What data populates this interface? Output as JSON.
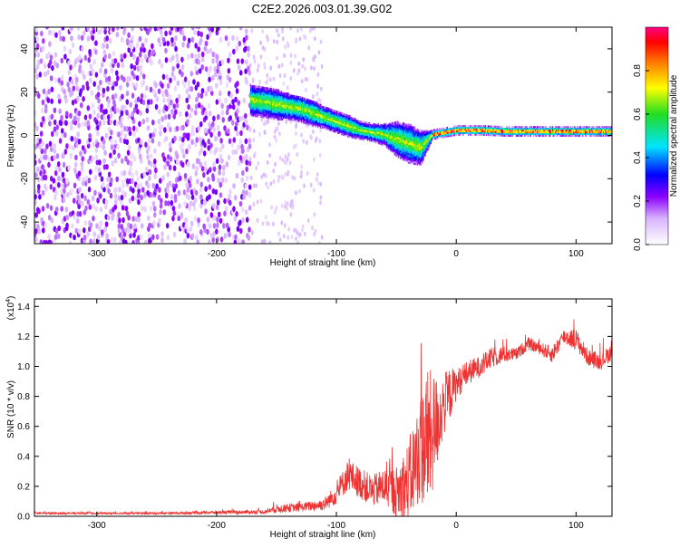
{
  "title": "C2E2.2026.003.01.39.G02",
  "colorbar": {
    "label": "Normalized spectral amplitude",
    "ticks": [
      "0.0",
      "0.2",
      "0.4",
      "0.6",
      "0.8"
    ],
    "range": [
      0,
      1
    ]
  },
  "chart_data": [
    {
      "type": "heatmap",
      "xlabel": "Height of straight line (km)",
      "ylabel": "Frequency (Hz)",
      "xlim": [
        -352,
        130
      ],
      "ylim": [
        -50,
        50
      ],
      "xticks": [
        "-300",
        "-200",
        "-100",
        "0",
        "100"
      ],
      "yticks": [
        "-40",
        "-20",
        "0",
        "20",
        "40"
      ],
      "noise_region": {
        "x": [
          -352,
          -172
        ],
        "y": [
          -50,
          50
        ],
        "level": 0.12
      },
      "signal_ridge": {
        "x": [
          -172,
          -160,
          -150,
          -140,
          -130,
          -120,
          -110,
          -100,
          -90,
          -80,
          -70,
          -60,
          -50,
          -40,
          -30,
          -20,
          -10,
          0,
          20,
          40,
          60,
          80,
          100,
          130
        ],
        "frequency_hz": [
          16,
          15,
          14,
          13,
          12,
          10,
          8,
          6,
          4,
          2,
          1,
          0,
          -2,
          -4,
          -6,
          0,
          1,
          2,
          2,
          1.5,
          1.5,
          1.5,
          1.5,
          1.5
        ],
        "spread_hz": [
          7,
          7,
          7,
          6,
          6,
          6,
          5,
          5,
          5,
          4,
          4,
          5,
          8,
          9,
          8,
          2,
          2,
          2,
          2,
          2,
          2,
          2,
          2,
          2
        ]
      },
      "grid": false
    },
    {
      "type": "line",
      "xlabel": "Height of straight line (km)",
      "ylabel": "SNR (10 * v/v)",
      "exponent_label": "(x10",
      "exponent_power": "4",
      "xlim": [
        -352,
        130
      ],
      "ylim": [
        0,
        1.45
      ],
      "xticks": [
        "-300",
        "-200",
        "-100",
        "0",
        "100"
      ],
      "yticks": [
        "0.0",
        "0.2",
        "0.4",
        "0.6",
        "0.8",
        "1.0",
        "1.2",
        "1.4"
      ],
      "series": [
        {
          "color": "#ee3333",
          "x": [
            -352,
            -250,
            -160,
            -150,
            -130,
            -110,
            -100,
            -90,
            -80,
            -70,
            -60,
            -50,
            -40,
            -30,
            -25,
            -20,
            -15,
            -10,
            -5,
            0,
            10,
            20,
            30,
            40,
            50,
            60,
            70,
            80,
            90,
            100,
            110,
            120,
            130
          ],
          "y": [
            0.02,
            0.02,
            0.03,
            0.05,
            0.06,
            0.08,
            0.15,
            0.28,
            0.22,
            0.17,
            0.2,
            0.16,
            0.22,
            0.45,
            0.5,
            0.55,
            0.65,
            0.75,
            0.82,
            0.88,
            0.96,
            1.0,
            1.06,
            1.08,
            1.08,
            1.15,
            1.12,
            1.08,
            1.2,
            1.18,
            1.06,
            1.03,
            1.1
          ],
          "noise_amp": [
            0.01,
            0.01,
            0.02,
            0.04,
            0.04,
            0.06,
            0.1,
            0.15,
            0.15,
            0.15,
            0.18,
            0.25,
            0.4,
            0.5,
            0.7,
            0.6,
            0.4,
            0.3,
            0.25,
            0.15,
            0.12,
            0.1,
            0.1,
            0.08,
            0.06,
            0.06,
            0.06,
            0.08,
            0.08,
            0.1,
            0.08,
            0.08,
            0.08
          ]
        }
      ],
      "grid": false
    }
  ]
}
